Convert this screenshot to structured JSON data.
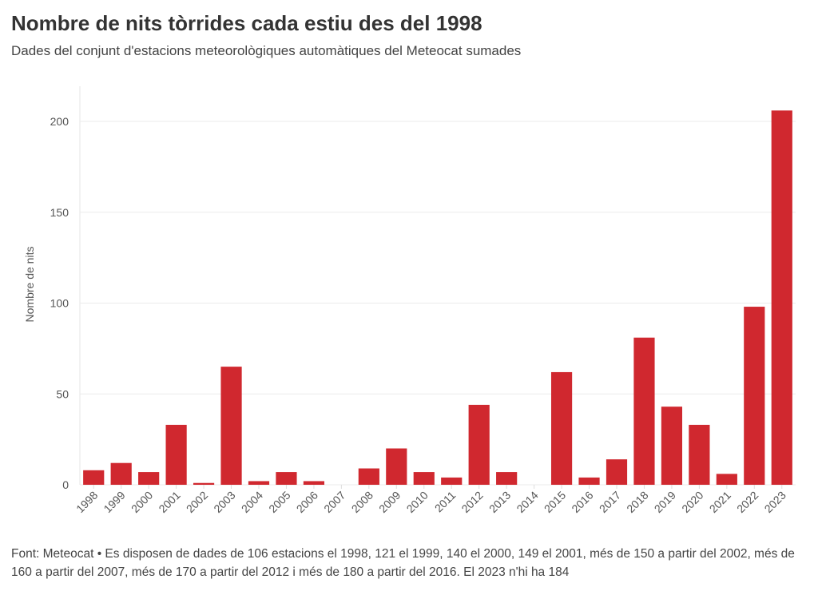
{
  "chart_data": {
    "type": "bar",
    "title": "Nombre de nits tòrrides cada estiu des del 1998",
    "subtitle": "Dades del conjunt d'estacions meteorològiques automàtiques del Meteocat sumades",
    "xlabel": "",
    "ylabel": "Nombre de nits",
    "ylim": [
      0,
      220
    ],
    "yticks": [
      0,
      50,
      100,
      150,
      200
    ],
    "grid": true,
    "categories": [
      "1998",
      "1999",
      "2000",
      "2001",
      "2002",
      "2003",
      "2004",
      "2005",
      "2006",
      "2007",
      "2008",
      "2009",
      "2010",
      "2011",
      "2012",
      "2013",
      "2014",
      "2015",
      "2016",
      "2017",
      "2018",
      "2019",
      "2020",
      "2021",
      "2022",
      "2023"
    ],
    "values": [
      8,
      12,
      7,
      33,
      1,
      65,
      2,
      7,
      2,
      0,
      9,
      20,
      7,
      4,
      44,
      7,
      0,
      62,
      4,
      14,
      81,
      43,
      33,
      6,
      98,
      206
    ],
    "bar_color": "#d0282f"
  },
  "footer": "Font: Meteocat • Es disposen de dades de 106 estacions el 1998, 121 el 1999, 140 el 2000, 149 el 2001, més de 150 a partir del 2002, més de 160 a partir del 2007, més de 170 a partir del 2012 i més de 180 a partir del 2016. El 2023 n'hi ha 184"
}
